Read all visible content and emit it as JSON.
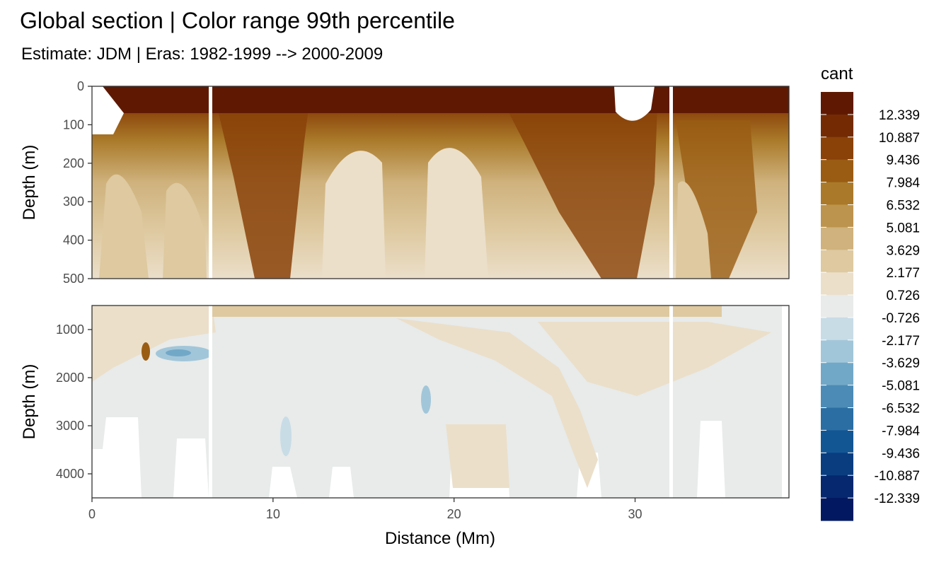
{
  "chart_data": {
    "type": "heatmap",
    "title": "Global section | Color range 99th percentile",
    "subtitle": "Estimate: JDM  | Eras: 1982-1999 --> 2000-2009",
    "xlabel": "Distance (Mm)",
    "xlim": [
      0,
      38.5
    ],
    "x_ticks": [
      "0",
      "10",
      "20",
      "30"
    ],
    "x_tick_values": [
      0,
      10,
      20,
      30
    ],
    "panels": [
      {
        "ylabel": "Depth (m)",
        "ylim": [
          0,
          500
        ],
        "y_reversed": true,
        "y_ticks": [
          "0",
          "100",
          "200",
          "300",
          "400",
          "500"
        ],
        "y_tick_values": [
          0,
          100,
          200,
          300,
          400,
          500
        ]
      },
      {
        "ylabel": "Depth (m)",
        "ylim": [
          500,
          4500
        ],
        "y_reversed": true,
        "y_ticks": [
          "1000",
          "2000",
          "3000",
          "4000"
        ],
        "y_tick_values": [
          1000,
          2000,
          3000,
          4000
        ]
      }
    ],
    "gap_lines_x": [
      6.5,
      32.1
    ],
    "legend": {
      "title": "cant",
      "placement": "right",
      "labels": [
        "12.339",
        "10.887",
        "9.436",
        "7.984",
        "6.532",
        "5.081",
        "3.629",
        "2.177",
        "0.726",
        "-0.726",
        "-2.177",
        "-3.629",
        "-5.081",
        "-6.532",
        "-7.984",
        "-9.436",
        "-10.887",
        "-12.339"
      ],
      "colors": [
        "#5f1903",
        "#742b04",
        "#8a4209",
        "#9a5c13",
        "#aa7a2a",
        "#bd944e",
        "#cfb27d",
        "#dec9a0",
        "#ebdfca",
        "#e8ebea",
        "#c8dce6",
        "#a2c6d9",
        "#72a8c7",
        "#4c8bb6",
        "#2a6ea3",
        "#135694",
        "#0a3d80",
        "#05286e",
        "#021961"
      ]
    },
    "grid": true
  }
}
